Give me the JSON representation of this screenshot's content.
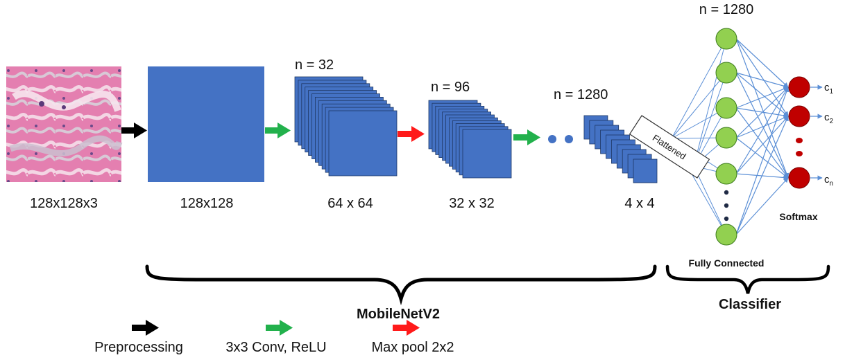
{
  "input": {
    "size_label": "128x128x3"
  },
  "layers": [
    {
      "size_label": "128x128",
      "n_label": ""
    },
    {
      "size_label": "64 x 64",
      "n_label": "n = 32"
    },
    {
      "size_label": "32 x 32",
      "n_label": "n = 96"
    },
    {
      "size_label": "4 x 4",
      "n_label": "n = 1280"
    }
  ],
  "flattened_label": "Flattened",
  "fc": {
    "n_label": "n = 1280",
    "label": "Fully Connected"
  },
  "softmax": {
    "label": "Softmax",
    "outputs": [
      {
        "base": "c",
        "sub": "1"
      },
      {
        "base": "c",
        "sub": "2"
      },
      {
        "base": "c",
        "sub": "n"
      }
    ]
  },
  "groups": {
    "backbone": "MobileNetV2",
    "classifier": "Classifier"
  },
  "legend": [
    {
      "label": "Preprocessing",
      "color": "#000000"
    },
    {
      "label": "3x3 Conv, ReLU",
      "color": "#22b14c"
    },
    {
      "label": "Max pool 2x2",
      "color": "#ff1a1a"
    }
  ],
  "colors": {
    "feature_map": "#4472c4",
    "feature_map_stroke": "#1f3864",
    "fc_node": "#92d050",
    "fc_node_stroke": "#3a7a1a",
    "out_node": "#c00000",
    "out_node_stroke": "#7a0000",
    "connection": "#5b8fd6",
    "input_tissue": "#e47fb0"
  }
}
